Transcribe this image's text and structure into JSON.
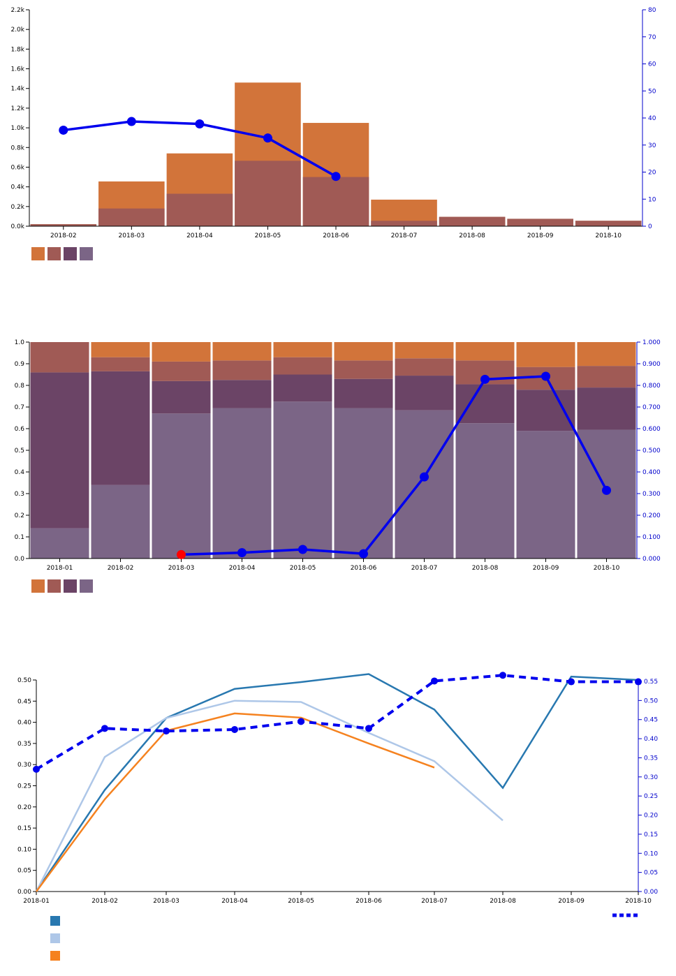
{
  "colors": {
    "bar_orange": "#d2743a",
    "bar_rose": "#a05a55",
    "bar_plum": "#6b4466",
    "bar_lilac": "#7b6586",
    "line_blue": "#0000ee",
    "highlight_red": "#ff0000",
    "line_teal": "#2878b0",
    "line_lightblue": "#aec7e8",
    "line_orange": "#f5821f",
    "axis_right": "#0000cc"
  },
  "chart_data": [
    {
      "type": "bar",
      "subtype": "overlaid bars with line on secondary axis",
      "categories": [
        "2018-02",
        "2018-03",
        "2018-04",
        "2018-05",
        "2018-06",
        "2018-07",
        "2018-08",
        "2018-09",
        "2018-10"
      ],
      "series": [
        {
          "values": [
            20,
            455,
            740,
            1460,
            1050,
            270,
            95,
            75,
            55
          ],
          "color": "bar_orange"
        },
        {
          "values": [
            20,
            180,
            330,
            665,
            500,
            55,
            95,
            75,
            55
          ],
          "color": "bar_rose"
        }
      ],
      "line": {
        "x": [
          "2018-02",
          "2018-03",
          "2018-04",
          "2018-05",
          "2018-06"
        ],
        "values": [
          35.5,
          38.7,
          37.8,
          32.6,
          18.4
        ],
        "axis": "right"
      },
      "ylim_left": [
        0,
        2200
      ],
      "ylim_right": [
        0,
        80
      ],
      "yticks_left": [
        "0.0k",
        "0.2k",
        "0.4k",
        "0.6k",
        "0.8k",
        "1.0k",
        "1.2k",
        "1.4k",
        "1.6k",
        "1.8k",
        "2.0k",
        "2.2k"
      ],
      "yticks_right": [
        "0",
        "10",
        "20",
        "30",
        "40",
        "50",
        "60",
        "70",
        "80"
      ],
      "legend": {
        "placement": "bottom-left",
        "swatches": [
          "bar_orange",
          "bar_rose",
          "bar_plum",
          "bar_lilac"
        ]
      }
    },
    {
      "type": "bar",
      "subtype": "100% stacked bars with line on secondary axis",
      "categories": [
        "2018-01",
        "2018-02",
        "2018-03",
        "2018-04",
        "2018-05",
        "2018-06",
        "2018-07",
        "2018-08",
        "2018-09",
        "2018-10"
      ],
      "series": [
        {
          "values": [
            0.14,
            0.34,
            0.67,
            0.695,
            0.725,
            0.695,
            0.685,
            0.625,
            0.59,
            0.595
          ],
          "color": "bar_lilac"
        },
        {
          "values": [
            0.72,
            0.525,
            0.15,
            0.13,
            0.125,
            0.135,
            0.16,
            0.18,
            0.19,
            0.195
          ],
          "color": "bar_plum"
        },
        {
          "values": [
            0.14,
            0.065,
            0.09,
            0.09,
            0.08,
            0.085,
            0.08,
            0.11,
            0.105,
            0.1
          ],
          "color": "bar_rose"
        },
        {
          "values": [
            0.0,
            0.07,
            0.09,
            0.085,
            0.07,
            0.085,
            0.075,
            0.085,
            0.115,
            0.11
          ],
          "color": "bar_orange"
        }
      ],
      "line": {
        "x": [
          "2018-03",
          "2018-04",
          "2018-05",
          "2018-06",
          "2018-07",
          "2018-08",
          "2018-09",
          "2018-10"
        ],
        "values": [
          0.018,
          0.027,
          0.042,
          0.022,
          0.377,
          0.828,
          0.842,
          0.315
        ],
        "axis": "right",
        "highlight_index": 0
      },
      "ylim_left": [
        0,
        1.0
      ],
      "ylim_right": [
        0,
        1.0
      ],
      "yticks_left": [
        "0.0",
        "0.1",
        "0.2",
        "0.3",
        "0.4",
        "0.5",
        "0.6",
        "0.7",
        "0.8",
        "0.9",
        "1.0"
      ],
      "yticks_right": [
        "0.000",
        "0.100",
        "0.200",
        "0.300",
        "0.400",
        "0.500",
        "0.600",
        "0.700",
        "0.800",
        "0.900",
        "1.000"
      ],
      "legend": {
        "placement": "bottom-left",
        "swatches": [
          "bar_orange",
          "bar_rose",
          "bar_plum",
          "bar_lilac"
        ]
      }
    },
    {
      "type": "line",
      "x": [
        "2018-01",
        "2018-02",
        "2018-03",
        "2018-04",
        "2018-05",
        "2018-06",
        "2018-07",
        "2018-08",
        "2018-09",
        "2018-10"
      ],
      "series": [
        {
          "values": [
            0.0,
            0.24,
            0.41,
            0.479,
            0.495,
            0.514,
            0.43,
            0.245,
            0.508,
            0.5
          ],
          "color": "line_teal"
        },
        {
          "values": [
            0.0,
            0.318,
            0.41,
            0.451,
            0.448,
            0.375,
            0.308,
            0.168,
            null,
            null
          ],
          "color": "line_lightblue"
        },
        {
          "values": [
            0.0,
            0.218,
            0.38,
            0.421,
            0.411,
            0.35,
            0.293,
            null,
            null,
            null
          ],
          "color": "line_orange"
        },
        {
          "values": [
            0.32,
            0.427,
            0.42,
            0.424,
            0.445,
            0.427,
            0.551,
            0.566,
            0.549,
            0.549
          ],
          "color": "line_blue",
          "dashed": true,
          "axis": "right"
        }
      ],
      "ylim_left": [
        0,
        0.5
      ],
      "ylim_right": [
        0,
        0.55
      ],
      "yticks_left": [
        "0.00",
        "0.05",
        "0.10",
        "0.15",
        "0.20",
        "0.25",
        "0.30",
        "0.35",
        "0.40",
        "0.45",
        "0.50"
      ],
      "yticks_right": [
        "0.00",
        "0.05",
        "0.10",
        "0.15",
        "0.20",
        "0.25",
        "0.30",
        "0.35",
        "0.40",
        "0.45",
        "0.50",
        "0.55"
      ],
      "legend": {
        "placement": "bottom-left",
        "swatches": [
          "line_teal",
          "line_lightblue",
          "line_orange"
        ],
        "dashed_swatch": "line_blue"
      }
    }
  ]
}
